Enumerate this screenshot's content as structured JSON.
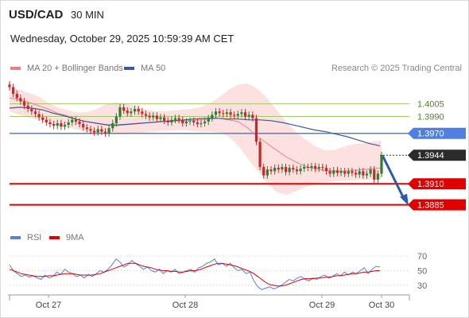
{
  "header": {
    "pair": "USD/CAD",
    "timeframe": "30 MIN",
    "timestamp": "Wednesday, October 29, 2025 10:59:39 AM CET"
  },
  "legend": {
    "ma20_label": "MA 20 + Bollinger Bands",
    "ma50_label": "MA 50",
    "credit": "Research © 2025 Trading Central"
  },
  "rsi_legend": {
    "rsi_label": "RSI",
    "ma9_label": "9MA"
  },
  "colors": {
    "candle_up": "#2e7d32",
    "candle_down": "#c62828",
    "bollinger": "#fde0e0",
    "ma20": "#f08080",
    "ma50": "#3a5b9a",
    "resistance": "#9ccc65",
    "pivot": "#4f7fe0",
    "support": "#e00000",
    "arrow": "#2b5ca8",
    "rsi": "#5b7fd6",
    "rsi_ma": "#e00000"
  },
  "chart_data": [
    {
      "type": "candlestick",
      "ylim": [
        1.3862,
        1.4034
      ],
      "x_labels": [
        "Oct 27",
        "Oct 28",
        "Oct 29",
        "Oct 30"
      ],
      "legend": [
        "MA 20 + Bollinger Bands",
        "MA 50"
      ],
      "levels": [
        {
          "value": 1.4005,
          "label": "1.4005",
          "kind": "resistance"
        },
        {
          "value": 1.399,
          "label": "1.3990",
          "kind": "resistance"
        },
        {
          "value": 1.397,
          "label": "1.3970",
          "kind": "pivot"
        },
        {
          "value": 1.3944,
          "label": "1.3944",
          "kind": "last"
        },
        {
          "value": 1.391,
          "label": "1.3910",
          "kind": "support"
        },
        {
          "value": 1.3885,
          "label": "1.3885",
          "kind": "support"
        }
      ],
      "candles": [
        1.4025,
        1.4017,
        1.4012,
        1.4008,
        1.4003,
        1.3999,
        1.3996,
        1.3993,
        1.3989,
        1.3986,
        1.3983,
        1.3981,
        1.3979,
        1.3982,
        1.3978,
        1.398,
        1.3983,
        1.3986,
        1.3984,
        1.3981,
        1.3977,
        1.3975,
        1.3973,
        1.3971,
        1.3975,
        1.3972,
        1.397,
        1.3976,
        1.3982,
        1.399,
        1.4001,
        1.3997,
        1.3994,
        1.3996,
        1.3999,
        1.3996,
        1.3993,
        1.3991,
        1.3989,
        1.3991,
        1.3987,
        1.3989,
        1.3985,
        1.3983,
        1.3986,
        1.3988,
        1.3986,
        1.3982,
        1.3984,
        1.3985,
        1.3983,
        1.3981,
        1.3982,
        1.3984,
        1.3988,
        1.3992,
        1.3996,
        1.3994,
        1.3993,
        1.3995,
        1.3992,
        1.3991,
        1.3993,
        1.3995,
        1.399,
        1.3992,
        1.3988,
        1.396,
        1.393,
        1.392,
        1.3927,
        1.3925,
        1.3929,
        1.3927,
        1.393,
        1.3924,
        1.3929,
        1.3927,
        1.3925,
        1.3928,
        1.393,
        1.3929,
        1.3931,
        1.3928,
        1.393,
        1.3929,
        1.3925,
        1.3922,
        1.3926,
        1.3923,
        1.3925,
        1.3922,
        1.3925,
        1.3923,
        1.3921,
        1.3925,
        1.392,
        1.3922,
        1.3927,
        1.3915,
        1.3922,
        1.3944
      ],
      "ma20": [
        1.4012,
        1.401,
        1.4007,
        1.4003,
        1.3999,
        1.3994,
        1.3991,
        1.3987,
        1.3984,
        1.3982,
        1.398,
        1.3979,
        1.398,
        1.3981,
        1.3982,
        1.3983,
        1.3984,
        1.3984,
        1.3985,
        1.3985,
        1.3986,
        1.3987,
        1.3988,
        1.3986,
        1.3984,
        1.3976,
        1.3966,
        1.3958,
        1.395,
        1.3942,
        1.3936,
        1.3931,
        1.3928,
        1.3926,
        1.3925,
        1.3925,
        1.3926,
        1.3927,
        1.3928,
        1.3929
      ],
      "ma50": [
        1.4,
        1.4001,
        1.4,
        1.3998,
        1.3994,
        1.3991,
        1.3987,
        1.3984,
        1.3982,
        1.398,
        1.398,
        1.3981,
        1.3982,
        1.3983,
        1.3984,
        1.3985,
        1.3986,
        1.3987,
        1.3988,
        1.3988,
        1.3987,
        1.3987,
        1.3986,
        1.3986,
        1.3985,
        1.3983,
        1.398,
        1.3977,
        1.3974,
        1.3972,
        1.3969,
        1.3966,
        1.3962,
        1.3958,
        1.3955
      ],
      "bb_upper": [
        1.4026,
        1.4022,
        1.4018,
        1.4014,
        1.4007,
        1.4001,
        1.3998,
        1.3995,
        1.3995,
        1.3998,
        1.4004,
        1.4007,
        1.4006,
        1.4003,
        1.3999,
        1.3997,
        1.3996,
        1.3997,
        1.3998,
        1.3999,
        1.4001,
        1.4006,
        1.4013,
        1.4022,
        1.4028,
        1.4029,
        1.4023,
        1.4012,
        1.3998,
        1.3984,
        1.3972,
        1.3963,
        1.3955,
        1.395,
        1.395,
        1.3954,
        1.3957,
        1.3958,
        1.396,
        1.3961
      ],
      "bb_lower": [
        1.3996,
        1.3992,
        1.3989,
        1.3986,
        1.3982,
        1.3979,
        1.3977,
        1.3975,
        1.3972,
        1.397,
        1.3969,
        1.3969,
        1.3969,
        1.397,
        1.3971,
        1.3972,
        1.3973,
        1.3973,
        1.3974,
        1.3973,
        1.3972,
        1.3972,
        1.3971,
        1.3966,
        1.3955,
        1.394,
        1.3925,
        1.3911,
        1.39,
        1.3897,
        1.3901,
        1.3906,
        1.391,
        1.3912,
        1.3913,
        1.3914,
        1.3914,
        1.3915,
        1.3915,
        1.3916
      ],
      "projection": {
        "from": 1.3944,
        "to": 1.3885
      }
    },
    {
      "type": "line",
      "ylim": [
        20,
        80
      ],
      "y_ticks": [
        70,
        50,
        30
      ],
      "series": [
        {
          "name": "RSI",
          "values": [
            58,
            50,
            46,
            42,
            44,
            41,
            43,
            40,
            38,
            44,
            40,
            42,
            48,
            45,
            52,
            48,
            46,
            42,
            44,
            40,
            45,
            42,
            46,
            50,
            48,
            52,
            58,
            66,
            62,
            55,
            58,
            64,
            60,
            56,
            52,
            55,
            50,
            48,
            52,
            46,
            50,
            48,
            52,
            46,
            48,
            50,
            52,
            48,
            54,
            56,
            60,
            62,
            66,
            58,
            60,
            56,
            60,
            54,
            50,
            52,
            46,
            48,
            36,
            28,
            24,
            26,
            28,
            25,
            27,
            30,
            34,
            38,
            36,
            40,
            42,
            38,
            36,
            40,
            38,
            42,
            44,
            40,
            42,
            46,
            43,
            48,
            44,
            48,
            46,
            50,
            54,
            46,
            52,
            56,
            55
          ]
        },
        {
          "name": "9MA",
          "values": [
            52,
            50,
            48,
            46,
            45,
            44,
            43,
            42,
            42,
            42,
            43,
            43,
            44,
            45,
            46,
            46,
            46,
            45,
            44,
            44,
            44,
            44,
            45,
            46,
            48,
            50,
            52,
            54,
            56,
            58,
            60,
            60,
            60,
            58,
            56,
            55,
            54,
            52,
            51,
            50,
            50,
            49,
            49,
            48,
            48,
            49,
            50,
            50,
            51,
            53,
            55,
            57,
            59,
            60,
            60,
            59,
            58,
            57,
            55,
            53,
            51,
            49,
            46,
            42,
            38,
            34,
            31,
            30,
            29,
            29,
            30,
            32,
            34,
            36,
            38,
            39,
            39,
            39,
            40,
            40,
            41,
            41,
            42,
            43,
            43,
            44,
            45,
            46,
            46,
            47,
            48,
            48,
            49,
            50,
            50
          ]
        }
      ]
    }
  ]
}
